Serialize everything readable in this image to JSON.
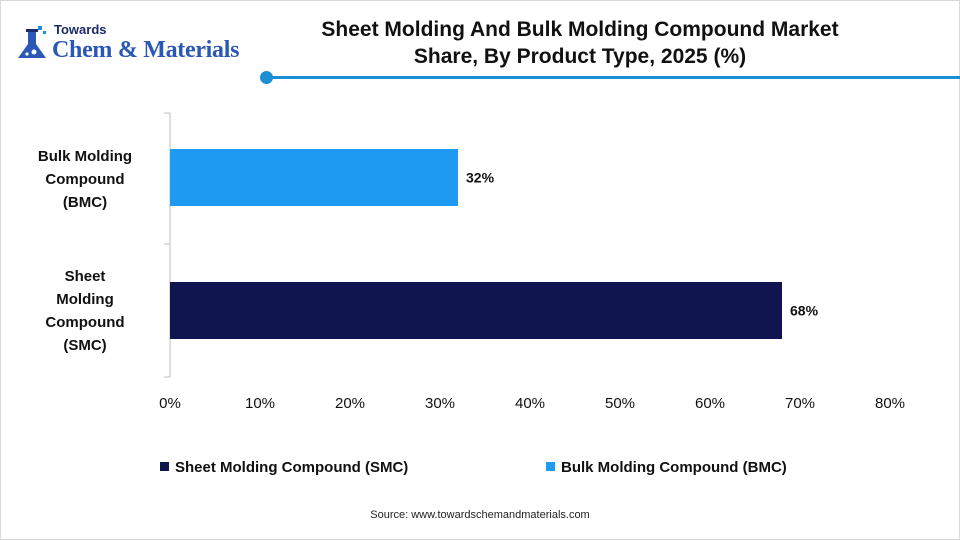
{
  "brand": {
    "top": "Towards",
    "name": "Chem & Materials",
    "accent": "#1a8fd6",
    "icon": "flask-icon"
  },
  "header": {
    "title_line1": "Sheet Molding And Bulk Molding Compound Market",
    "title_line2": "Share, By Product Type, 2025 (%)"
  },
  "chart_data": {
    "type": "bar",
    "orientation": "horizontal",
    "title": "Sheet Molding And Bulk Molding Compound Market Share, By Product Type, 2025 (%)",
    "categories": [
      "Bulk Molding Compound (BMC)",
      "Sheet Molding Compound (SMC)"
    ],
    "category_lines": [
      [
        "Bulk Molding",
        "Compound",
        "(BMC)"
      ],
      [
        "Sheet",
        "Molding",
        "Compound",
        "(SMC)"
      ]
    ],
    "values": [
      32,
      68
    ],
    "data_labels": [
      "32%",
      "68%"
    ],
    "colors": [
      "#1e9bf0",
      "#10154f"
    ],
    "xlim": [
      0,
      80
    ],
    "xticks": [
      "0%",
      "10%",
      "20%",
      "30%",
      "40%",
      "50%",
      "60%",
      "70%",
      "80%"
    ],
    "grid": false,
    "legend_position": "bottom",
    "legend": [
      {
        "name": "Sheet Molding Compound (SMC)",
        "color": "#10154f"
      },
      {
        "name": "Bulk Molding Compound (BMC)",
        "color": "#1e9bf0"
      }
    ]
  },
  "source": "Source: www.towardschemandmaterials.com"
}
